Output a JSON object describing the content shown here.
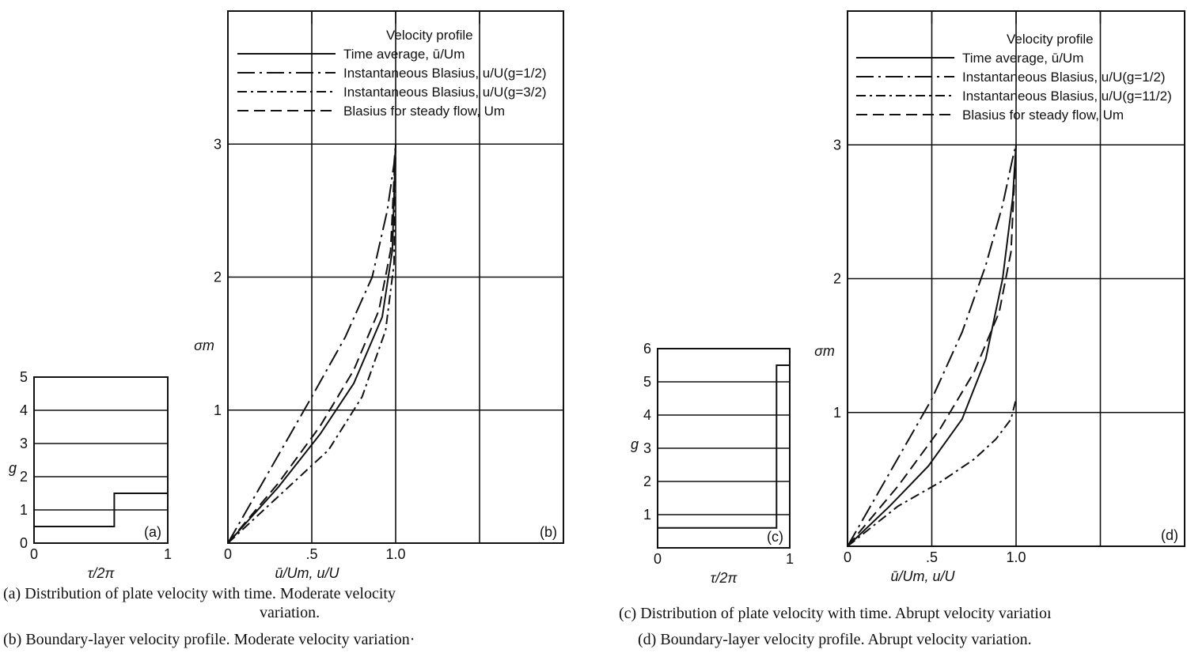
{
  "captions": {
    "a_line1": "(a)  Distribution  of  plate  velocity  with  time.   Moderate  velocity",
    "a_line2": "variation.",
    "b": "(b)  Boundary-layer  velocity  profile.   Moderate  velocity  variation·",
    "c": "(c)  Distribution of plate velocity with time.   Abrupt velocity variatioı",
    "d": "(d)  Boundary-layer  velocity  profile.   Abrupt  velocity  variation."
  },
  "chart_data": [
    {
      "id": "a",
      "type": "line",
      "panel_label": "(a)",
      "xlabel": "τ/2π",
      "ylabel": "g",
      "xlim": [
        0,
        1
      ],
      "ylim": [
        0,
        5
      ],
      "x_ticks": [
        "0",
        "1"
      ],
      "y_ticks": [
        "0",
        "1",
        "2",
        "3",
        "4",
        "5"
      ],
      "grid": true,
      "series": [
        {
          "style": "solid",
          "x": [
            0,
            0.6,
            0.6,
            1.0
          ],
          "y": [
            0.5,
            0.5,
            1.5,
            1.5
          ]
        }
      ]
    },
    {
      "id": "b",
      "type": "line",
      "panel_label": "(b)",
      "xlabel": "ū/Um, u/U",
      "ylabel": "σm",
      "xlim": [
        0,
        2
      ],
      "ylim": [
        0,
        4
      ],
      "x_ticks": [
        "0",
        ".5",
        "1.0"
      ],
      "y_ticks": [
        "1",
        "2",
        "3"
      ],
      "grid": true,
      "legend": {
        "title": "Velocity profile",
        "placement": "top",
        "entries": [
          {
            "style": "solid",
            "label": "Time average,  ū/Um"
          },
          {
            "style": "longdashdot",
            "label": "Instantaneous Blasius,  u/U(g=1/2)"
          },
          {
            "style": "dashdot",
            "label": "Instantaneous Blasius,  u/U(g=3/2)"
          },
          {
            "style": "dashed",
            "label": "Blasius  for steady flow,  Um"
          }
        ]
      },
      "series": [
        {
          "style": "solid",
          "x": [
            0,
            0.3,
            0.55,
            0.75,
            0.92,
            0.98,
            1.0
          ],
          "y": [
            0,
            0.42,
            0.82,
            1.2,
            1.7,
            2.2,
            3.0
          ]
        },
        {
          "style": "longdashdot",
          "x": [
            0,
            0.25,
            0.5,
            0.7,
            0.86,
            0.95,
            0.99,
            1.0
          ],
          "y": [
            0,
            0.55,
            1.1,
            1.55,
            2.0,
            2.5,
            2.85,
            3.0
          ]
        },
        {
          "style": "dashdot",
          "x": [
            0,
            0.3,
            0.6,
            0.8,
            0.94,
            0.99,
            1.0
          ],
          "y": [
            0,
            0.35,
            0.7,
            1.1,
            1.6,
            2.1,
            3.0
          ]
        },
        {
          "style": "dashed",
          "x": [
            0,
            0.3,
            0.55,
            0.75,
            0.9,
            0.97,
            1.0
          ],
          "y": [
            0,
            0.45,
            0.88,
            1.3,
            1.75,
            2.2,
            3.0
          ]
        }
      ]
    },
    {
      "id": "c",
      "type": "line",
      "panel_label": "(c)",
      "xlabel": "τ/2π",
      "ylabel": "g",
      "xlim": [
        0,
        1
      ],
      "ylim": [
        0,
        6
      ],
      "x_ticks": [
        "0",
        "1"
      ],
      "y_ticks": [
        "1",
        "2",
        "3",
        "4",
        "5",
        "6"
      ],
      "grid": true,
      "series": [
        {
          "style": "solid",
          "x": [
            0,
            0.9,
            0.9,
            1.0
          ],
          "y": [
            0.6,
            0.6,
            5.5,
            5.5
          ]
        }
      ]
    },
    {
      "id": "d",
      "type": "line",
      "panel_label": "(d)",
      "xlabel": "ū/Um, u/U",
      "ylabel": "σm",
      "xlim": [
        0,
        2
      ],
      "ylim": [
        0,
        4
      ],
      "x_ticks": [
        "0",
        ".5",
        "1.0"
      ],
      "y_ticks": [
        "1",
        "2",
        "3"
      ],
      "grid": true,
      "legend": {
        "title": "Velocity profile",
        "placement": "top",
        "entries": [
          {
            "style": "solid",
            "label": "Time average,  ū/Um"
          },
          {
            "style": "longdashdot",
            "label": "Instantaneous Blasius,  u/U(g=1/2)"
          },
          {
            "style": "dashdot",
            "label": "Instantaneous Blasius,  u/U(g=11/2)"
          },
          {
            "style": "dashed",
            "label": "Blasius  for steady flow,  Um"
          }
        ]
      },
      "series": [
        {
          "style": "solid",
          "x": [
            0,
            0.25,
            0.48,
            0.68,
            0.82,
            0.92,
            0.98,
            1.0
          ],
          "y": [
            0,
            0.3,
            0.6,
            0.95,
            1.4,
            2.0,
            2.6,
            3.0
          ]
        },
        {
          "style": "longdashdot",
          "x": [
            0,
            0.25,
            0.5,
            0.68,
            0.82,
            0.92,
            0.98,
            1.0
          ],
          "y": [
            0,
            0.55,
            1.1,
            1.6,
            2.1,
            2.55,
            2.9,
            3.0
          ]
        },
        {
          "style": "dashdot",
          "x": [
            0,
            0.3,
            0.55,
            0.75,
            0.88,
            0.97,
            1.0
          ],
          "y": [
            0,
            0.3,
            0.48,
            0.65,
            0.8,
            0.95,
            1.1
          ]
        },
        {
          "style": "dashed",
          "x": [
            0,
            0.3,
            0.55,
            0.75,
            0.9,
            0.97,
            1.0
          ],
          "y": [
            0,
            0.45,
            0.88,
            1.3,
            1.75,
            2.2,
            3.0
          ]
        }
      ]
    }
  ]
}
